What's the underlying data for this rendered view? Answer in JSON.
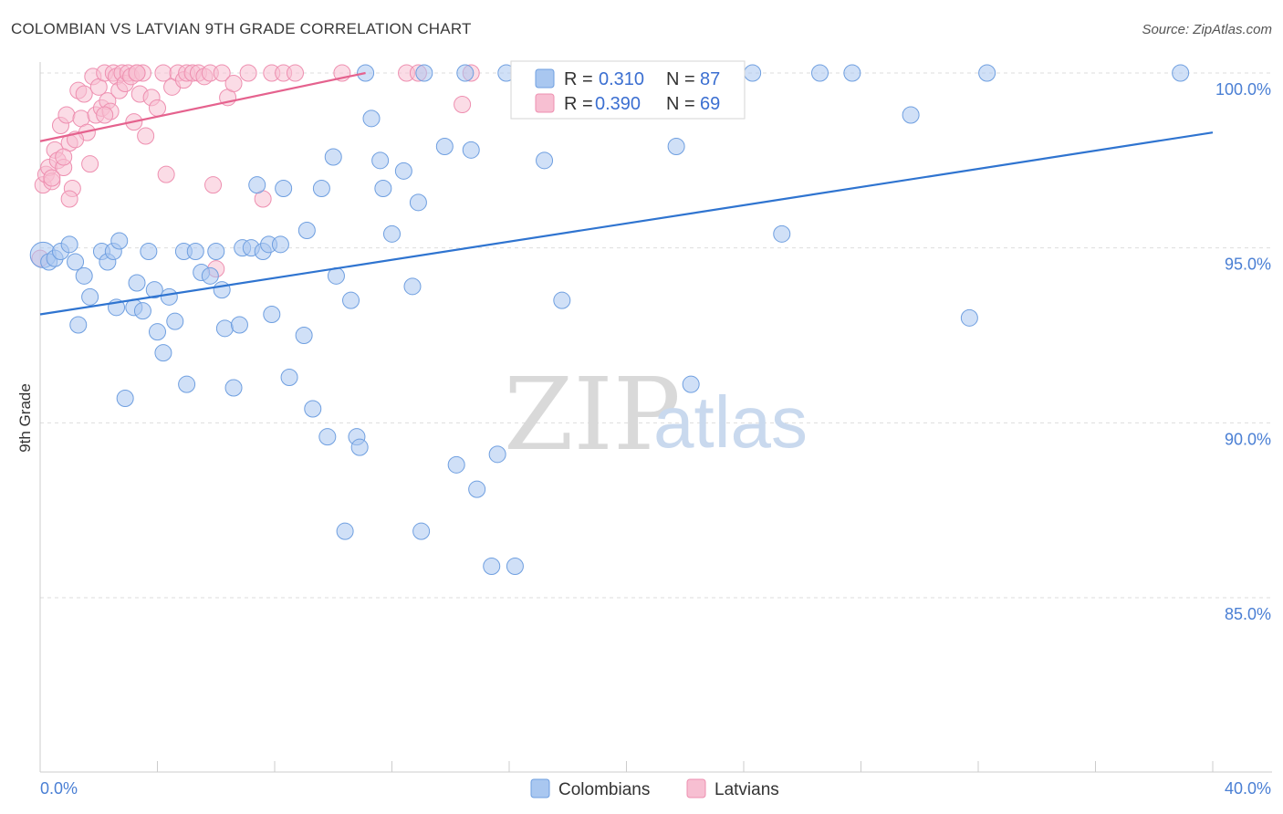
{
  "header": {
    "title": "COLOMBIAN VS LATVIAN 9TH GRADE CORRELATION CHART",
    "source": "Source: ZipAtlas.com"
  },
  "watermark": {
    "zip": "ZIP",
    "atlas": "atlas"
  },
  "colors": {
    "colombians_fill": "#a9c7f0",
    "colombians_stroke": "#6f9fe0",
    "colombians_line": "#2f74d0",
    "latvians_fill": "#f7bfd2",
    "latvians_stroke": "#ee8fb0",
    "latvians_line": "#e5628e",
    "axis_label": "#4a7fd4",
    "grid": "#dddddd"
  },
  "legend": {
    "rows": [
      {
        "r_label": "R =",
        "r_value": "0.310",
        "n_label": "N =",
        "n_value": "87"
      },
      {
        "r_label": "R =",
        "r_value": "0.390",
        "n_label": "N =",
        "n_value": "69"
      }
    ],
    "bottom": [
      {
        "label": "Colombians"
      },
      {
        "label": "Latvians"
      }
    ]
  },
  "chart_data": {
    "type": "scatter",
    "title": "COLOMBIAN VS LATVIAN 9TH GRADE CORRELATION CHART",
    "xlabel": "",
    "ylabel": "9th Grade",
    "xlim": [
      0,
      40
    ],
    "ylim": [
      80.5,
      100.8
    ],
    "x_tick_labels": [
      "0.0%",
      "40.0%"
    ],
    "y_ticks": [
      100,
      95,
      90,
      85
    ],
    "y_tick_labels": [
      "100.0%",
      "95.0%",
      "90.0%",
      "85.0%"
    ],
    "series": [
      {
        "name": "Colombians",
        "R": 0.31,
        "N": 87,
        "trend": {
          "x": [
            0,
            40
          ],
          "y": [
            93.1,
            98.3
          ]
        },
        "points": [
          [
            0.1,
            94.8
          ],
          [
            0.3,
            94.6
          ],
          [
            0.5,
            94.7
          ],
          [
            0.7,
            94.9
          ],
          [
            1.0,
            95.1
          ],
          [
            1.2,
            94.6
          ],
          [
            1.3,
            92.8
          ],
          [
            1.5,
            94.2
          ],
          [
            1.7,
            93.6
          ],
          [
            2.1,
            94.9
          ],
          [
            2.3,
            94.6
          ],
          [
            2.5,
            94.9
          ],
          [
            2.6,
            93.3
          ],
          [
            2.7,
            95.2
          ],
          [
            2.9,
            90.7
          ],
          [
            3.2,
            93.3
          ],
          [
            3.3,
            94.0
          ],
          [
            3.5,
            93.2
          ],
          [
            3.7,
            94.9
          ],
          [
            3.9,
            93.8
          ],
          [
            4.0,
            92.6
          ],
          [
            4.2,
            92.0
          ],
          [
            4.4,
            93.6
          ],
          [
            4.6,
            92.9
          ],
          [
            4.9,
            94.9
          ],
          [
            5.0,
            91.1
          ],
          [
            5.3,
            94.9
          ],
          [
            5.5,
            94.3
          ],
          [
            5.8,
            94.2
          ],
          [
            6.0,
            94.9
          ],
          [
            6.2,
            93.8
          ],
          [
            6.3,
            92.7
          ],
          [
            6.6,
            91.0
          ],
          [
            6.8,
            92.8
          ],
          [
            6.9,
            95.0
          ],
          [
            7.2,
            95.0
          ],
          [
            7.4,
            96.8
          ],
          [
            7.6,
            94.9
          ],
          [
            7.8,
            95.1
          ],
          [
            7.9,
            93.1
          ],
          [
            8.2,
            95.1
          ],
          [
            8.3,
            96.7
          ],
          [
            8.5,
            91.3
          ],
          [
            9.0,
            92.5
          ],
          [
            9.1,
            95.5
          ],
          [
            9.3,
            90.4
          ],
          [
            9.6,
            96.7
          ],
          [
            9.8,
            89.6
          ],
          [
            10.0,
            97.6
          ],
          [
            10.1,
            94.2
          ],
          [
            10.4,
            86.9
          ],
          [
            10.6,
            93.5
          ],
          [
            10.8,
            89.6
          ],
          [
            10.9,
            89.3
          ],
          [
            11.1,
            100.0
          ],
          [
            11.3,
            98.7
          ],
          [
            11.6,
            97.5
          ],
          [
            11.7,
            96.7
          ],
          [
            12.0,
            95.4
          ],
          [
            12.4,
            97.2
          ],
          [
            12.7,
            93.9
          ],
          [
            12.9,
            96.3
          ],
          [
            13.0,
            86.9
          ],
          [
            13.1,
            100.0
          ],
          [
            13.8,
            97.9
          ],
          [
            14.2,
            88.8
          ],
          [
            14.5,
            100.0
          ],
          [
            14.7,
            97.8
          ],
          [
            14.9,
            88.1
          ],
          [
            15.4,
            85.9
          ],
          [
            15.6,
            89.1
          ],
          [
            15.9,
            100.0
          ],
          [
            16.2,
            85.9
          ],
          [
            17.2,
            97.5
          ],
          [
            17.8,
            93.5
          ],
          [
            18.4,
            100.0
          ],
          [
            19.6,
            100.0
          ],
          [
            21.7,
            97.9
          ],
          [
            22.2,
            91.1
          ],
          [
            24.3,
            100.0
          ],
          [
            25.3,
            95.4
          ],
          [
            26.6,
            100.0
          ],
          [
            27.7,
            100.0
          ],
          [
            29.7,
            98.8
          ],
          [
            31.7,
            93.0
          ],
          [
            32.3,
            100.0
          ],
          [
            38.9,
            100.0
          ]
        ]
      },
      {
        "name": "Latvians",
        "R": 0.39,
        "N": 69,
        "trend": {
          "x": [
            0,
            11.1
          ],
          "y": [
            98.05,
            100.0
          ]
        },
        "points": [
          [
            0.0,
            94.7
          ],
          [
            0.1,
            96.8
          ],
          [
            0.2,
            97.1
          ],
          [
            0.3,
            97.3
          ],
          [
            0.4,
            96.9
          ],
          [
            0.5,
            97.8
          ],
          [
            0.6,
            97.5
          ],
          [
            0.7,
            98.5
          ],
          [
            0.8,
            97.3
          ],
          [
            0.9,
            98.8
          ],
          [
            1.0,
            98.0
          ],
          [
            1.1,
            96.7
          ],
          [
            1.3,
            99.5
          ],
          [
            1.4,
            98.7
          ],
          [
            1.5,
            99.4
          ],
          [
            1.6,
            98.3
          ],
          [
            1.7,
            97.4
          ],
          [
            1.8,
            99.9
          ],
          [
            1.9,
            98.8
          ],
          [
            2.0,
            99.6
          ],
          [
            2.1,
            99.0
          ],
          [
            2.2,
            100.0
          ],
          [
            2.3,
            99.2
          ],
          [
            2.4,
            98.9
          ],
          [
            2.5,
            100.0
          ],
          [
            2.6,
            99.9
          ],
          [
            2.7,
            99.5
          ],
          [
            2.8,
            100.0
          ],
          [
            2.9,
            99.7
          ],
          [
            3.0,
            100.0
          ],
          [
            3.1,
            99.9
          ],
          [
            3.2,
            98.6
          ],
          [
            3.3,
            100.0
          ],
          [
            3.4,
            99.4
          ],
          [
            3.5,
            100.0
          ],
          [
            3.6,
            98.2
          ],
          [
            3.8,
            99.3
          ],
          [
            4.0,
            99.0
          ],
          [
            4.2,
            100.0
          ],
          [
            4.3,
            97.1
          ],
          [
            4.5,
            99.6
          ],
          [
            4.7,
            100.0
          ],
          [
            4.9,
            99.8
          ],
          [
            5.0,
            100.0
          ],
          [
            5.2,
            100.0
          ],
          [
            5.4,
            100.0
          ],
          [
            5.6,
            99.9
          ],
          [
            5.8,
            100.0
          ],
          [
            5.9,
            96.8
          ],
          [
            6.0,
            94.4
          ],
          [
            6.2,
            100.0
          ],
          [
            6.4,
            99.3
          ],
          [
            6.6,
            99.7
          ],
          [
            7.1,
            100.0
          ],
          [
            7.6,
            96.4
          ],
          [
            7.9,
            100.0
          ],
          [
            8.3,
            100.0
          ],
          [
            8.7,
            100.0
          ],
          [
            10.3,
            100.0
          ],
          [
            12.5,
            100.0
          ],
          [
            12.9,
            100.0
          ],
          [
            14.7,
            100.0
          ],
          [
            14.4,
            99.1
          ],
          [
            0.4,
            97.0
          ],
          [
            0.8,
            97.6
          ],
          [
            1.2,
            98.1
          ],
          [
            2.2,
            98.8
          ],
          [
            3.3,
            100.0
          ],
          [
            1.0,
            96.4
          ]
        ]
      }
    ]
  }
}
